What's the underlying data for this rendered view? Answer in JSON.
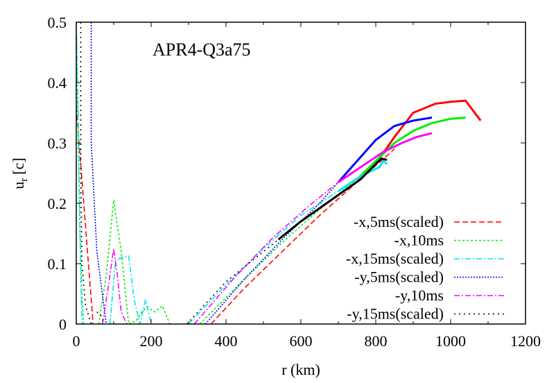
{
  "chart_data": {
    "type": "line",
    "title": "APR4-Q3a75",
    "xlabel": "r (km)",
    "ylabel": "u_r [c]",
    "ylabel_main": "u",
    "ylabel_sub": "r",
    "ylabel_unit": "[c]",
    "xlim": [
      0,
      1200
    ],
    "ylim": [
      0,
      0.5
    ],
    "xticks": [
      0,
      200,
      400,
      600,
      800,
      1000,
      1200
    ],
    "xtick_labels": [
      "0",
      "200",
      "400",
      "600",
      "800",
      "1000",
      "1200"
    ],
    "yticks": [
      0,
      0.1,
      0.2,
      0.3,
      0.4,
      0.5
    ],
    "ytick_labels": [
      "0",
      "0.1",
      "0.2",
      "0.3",
      "0.4",
      "0.5"
    ],
    "grid": false,
    "legend_position": "lower right",
    "series": [
      {
        "name": "-x,5ms(scaled)",
        "color": "#ff0000",
        "dash": "8,4",
        "segments": [
          {
            "x": [
              0,
              20,
              45
            ],
            "y": [
              0.36,
              0.2,
              0.0
            ],
            "solid": false
          },
          {
            "x": [
              360,
              450,
              550,
              650,
              750,
              850
            ],
            "y": [
              0.0,
              0.06,
              0.12,
              0.18,
              0.235,
              0.29
            ],
            "solid": false
          },
          {
            "x": [
              750,
              800,
              850,
              900,
              960,
              1000,
              1040,
              1080
            ],
            "y": [
              0.235,
              0.265,
              0.31,
              0.35,
              0.365,
              0.368,
              0.37,
              0.337
            ],
            "solid": true
          }
        ]
      },
      {
        "name": "-x,10ms",
        "color": "#00ee00",
        "dash": "3,3",
        "segments": [
          {
            "x": [
              0,
              5,
              10,
              15,
              20
            ],
            "y": [
              0.5,
              0.3,
              0.15,
              0.05,
              0.0
            ],
            "solid": false
          },
          {
            "x": [
              60,
              80,
              100,
              120,
              140,
              160,
              175,
              190,
              210,
              230,
              250
            ],
            "y": [
              0.0,
              0.08,
              0.205,
              0.12,
              0.0,
              0.005,
              0.02,
              0.028,
              0.02,
              0.03,
              0.0
            ],
            "solid": false
          },
          {
            "x": [
              330,
              450,
              550,
              650,
              750
            ],
            "y": [
              0.0,
              0.075,
              0.135,
              0.19,
              0.24
            ],
            "solid": false
          },
          {
            "x": [
              750,
              800,
              850,
              900,
              950,
              1000,
              1040
            ],
            "y": [
              0.24,
              0.27,
              0.3,
              0.32,
              0.333,
              0.34,
              0.342
            ],
            "solid": true
          }
        ]
      },
      {
        "name": "-x,15ms(scaled)",
        "color": "#00e5ee",
        "dash": "8,3,2,3",
        "segments": [
          {
            "x": [
              0,
              5,
              10,
              15
            ],
            "y": [
              0.5,
              0.35,
              0.15,
              0.0
            ],
            "solid": false
          },
          {
            "x": [
              90,
              105,
              120,
              140,
              155,
              170,
              185,
              200
            ],
            "y": [
              0.0,
              0.105,
              0.11,
              0.113,
              0.04,
              0.0,
              0.04,
              0.0
            ],
            "solid": false
          },
          {
            "x": [
              300,
              400,
              500,
              600,
              700
            ],
            "y": [
              0.0,
              0.065,
              0.125,
              0.18,
              0.22
            ],
            "solid": false
          },
          {
            "x": [
              700,
              760,
              810,
              820,
              830
            ],
            "y": [
              0.22,
              0.245,
              0.26,
              0.27,
              0.265
            ],
            "solid": true
          }
        ]
      },
      {
        "name": "-y,5ms(scaled)",
        "color": "#0000ff",
        "dash": "2,2",
        "segments": [
          {
            "x": [
              40,
              40,
              55,
              80
            ],
            "y": [
              0.5,
              0.3,
              0.12,
              0.0
            ],
            "solid": false
          },
          {
            "x": [
              345,
              450,
              550,
              650,
              700
            ],
            "y": [
              0.0,
              0.075,
              0.14,
              0.2,
              0.235
            ],
            "solid": false
          },
          {
            "x": [
              700,
              750,
              800,
              850,
              900,
              950
            ],
            "y": [
              0.235,
              0.27,
              0.305,
              0.328,
              0.337,
              0.342
            ],
            "solid": true
          }
        ]
      },
      {
        "name": "-y,10ms",
        "color": "#ff00ff",
        "dash": "8,3,2,3",
        "segments": [
          {
            "x": [
              70,
              85,
              100,
              110,
              120,
              135
            ],
            "y": [
              0.0,
              0.06,
              0.125,
              0.08,
              0.02,
              0.0
            ],
            "solid": false
          },
          {
            "x": [
              315,
              420,
              520,
              620,
              700
            ],
            "y": [
              0.0,
              0.075,
              0.14,
              0.195,
              0.235
            ],
            "solid": false
          },
          {
            "x": [
              700,
              760,
              820,
              870,
              910,
              950
            ],
            "y": [
              0.235,
              0.26,
              0.285,
              0.3,
              0.31,
              0.316
            ],
            "solid": true
          }
        ]
      },
      {
        "name": "-y,15ms(scaled)",
        "color": "#000000",
        "dash": "2,5",
        "segments": [
          {
            "x": [
              12,
              12,
              15,
              25,
              40
            ],
            "y": [
              0.5,
              0.25,
              0.1,
              0.03,
              0.0
            ],
            "solid": false
          },
          {
            "x": [
              55,
              65,
              75
            ],
            "y": [
              0.02,
              0.015,
              0.0
            ],
            "solid": false
          },
          {
            "x": [
              295,
              400,
              540
            ],
            "y": [
              0.0,
              0.07,
              0.14
            ],
            "solid": false
          },
          {
            "x": [
              540,
              600,
              680,
              760,
              800,
              815,
              830
            ],
            "y": [
              0.14,
              0.17,
              0.205,
              0.24,
              0.265,
              0.274,
              0.272
            ],
            "solid": true
          }
        ]
      }
    ]
  }
}
